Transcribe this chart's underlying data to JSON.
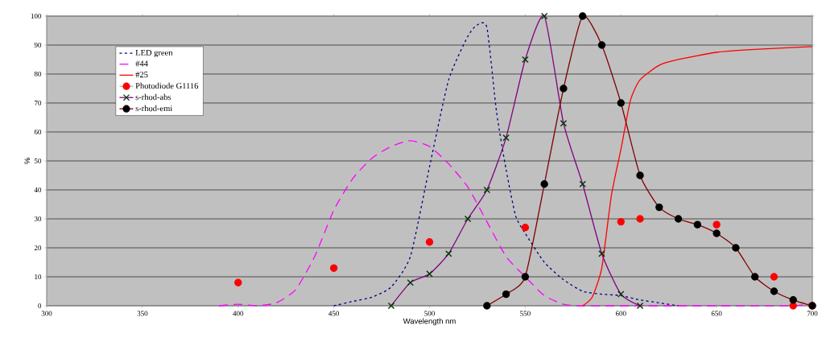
{
  "chart_data": {
    "type": "line",
    "xlabel": "Wavelength nm",
    "ylabel": "%",
    "xlim": [
      300,
      700
    ],
    "ylim": [
      0,
      100
    ],
    "xticks": [
      300,
      350,
      400,
      450,
      500,
      550,
      600,
      650,
      700
    ],
    "yticks": [
      0,
      10,
      20,
      30,
      40,
      50,
      60,
      70,
      80,
      90,
      100
    ],
    "grid": "y",
    "legend": "top left",
    "series": [
      {
        "name": "LED green",
        "color": "#000080",
        "line_style": "dotted",
        "marker": "none",
        "x": [
          450,
          460,
          470,
          480,
          490,
          500,
          510,
          520,
          525,
          530,
          535,
          540,
          545,
          550,
          560,
          570,
          580,
          590,
          600,
          610,
          620,
          630
        ],
        "values": [
          0,
          1.5,
          3,
          6.5,
          17,
          48,
          78,
          93,
          97,
          96,
          67,
          47,
          31,
          25,
          15,
          9,
          5,
          4,
          3.5,
          2,
          1,
          0
        ]
      },
      {
        "name": "#44",
        "color": "#ff00ff",
        "line_style": "dashed",
        "marker": "none",
        "x": [
          390,
          400,
          410,
          420,
          430,
          440,
          450,
          460,
          470,
          480,
          490,
          500,
          510,
          520,
          530,
          540,
          550,
          560,
          570,
          580,
          600,
          650,
          690,
          700
        ],
        "values": [
          0,
          0.5,
          0,
          1,
          5.5,
          17,
          33,
          44,
          51,
          55,
          57,
          55,
          49,
          41,
          29,
          17,
          10,
          3.5,
          0.5,
          0,
          0,
          0,
          0,
          1
        ]
      },
      {
        "name": "#25",
        "color": "#ff0000",
        "line_style": "solid",
        "marker": "none",
        "x": [
          580,
          585,
          590,
          595,
          600,
          605,
          610,
          620,
          630,
          650,
          670,
          700
        ],
        "values": [
          0,
          3,
          13,
          38,
          54,
          71,
          78,
          83,
          85,
          87.5,
          88.5,
          89.5
        ]
      },
      {
        "name": "Photodiode G1116",
        "type": "scatter",
        "color": "#ff0000",
        "marker": "circle",
        "x": [
          400,
          450,
          500,
          550,
          600,
          610,
          650,
          680,
          690,
          700
        ],
        "values": [
          8,
          13,
          22,
          27,
          29,
          30,
          28,
          10,
          0,
          0
        ]
      },
      {
        "name": "s-rhod-abs",
        "color": "#800080",
        "line_style": "solid",
        "marker": "cross",
        "colors": [
          "#003300",
          "#003300",
          "#003300",
          "#003300",
          "#003300",
          "#003300",
          "#003300",
          "#003300",
          "#003300",
          "#003300",
          "#003300",
          "#003300",
          "#003300",
          "#003300"
        ],
        "x": [
          480,
          490,
          500,
          510,
          520,
          530,
          540,
          550,
          560,
          570,
          580,
          590,
          600,
          610
        ],
        "values": [
          0,
          8,
          11,
          18,
          30,
          40,
          58,
          85,
          100,
          63,
          42,
          18,
          4,
          0
        ]
      },
      {
        "name": "s-rhod-emi",
        "color": "#800000",
        "line_style": "solid",
        "marker": "circle",
        "colors": [
          "#000000",
          "#000000",
          "#000000",
          "#000000",
          "#000000",
          "#000000",
          "#000000",
          "#000000",
          "#000000",
          "#000000",
          "#000000",
          "#000000",
          "#000000",
          "#000000",
          "#000000",
          "#000000",
          "#000000",
          "#000000"
        ],
        "x": [
          530,
          540,
          550,
          560,
          570,
          580,
          590,
          600,
          610,
          620,
          630,
          640,
          650,
          660,
          670,
          680,
          690,
          700
        ],
        "values": [
          0,
          4,
          10,
          42,
          75,
          100,
          90,
          70,
          45,
          34,
          30,
          28,
          25,
          20,
          10,
          5,
          2,
          0
        ]
      }
    ]
  }
}
